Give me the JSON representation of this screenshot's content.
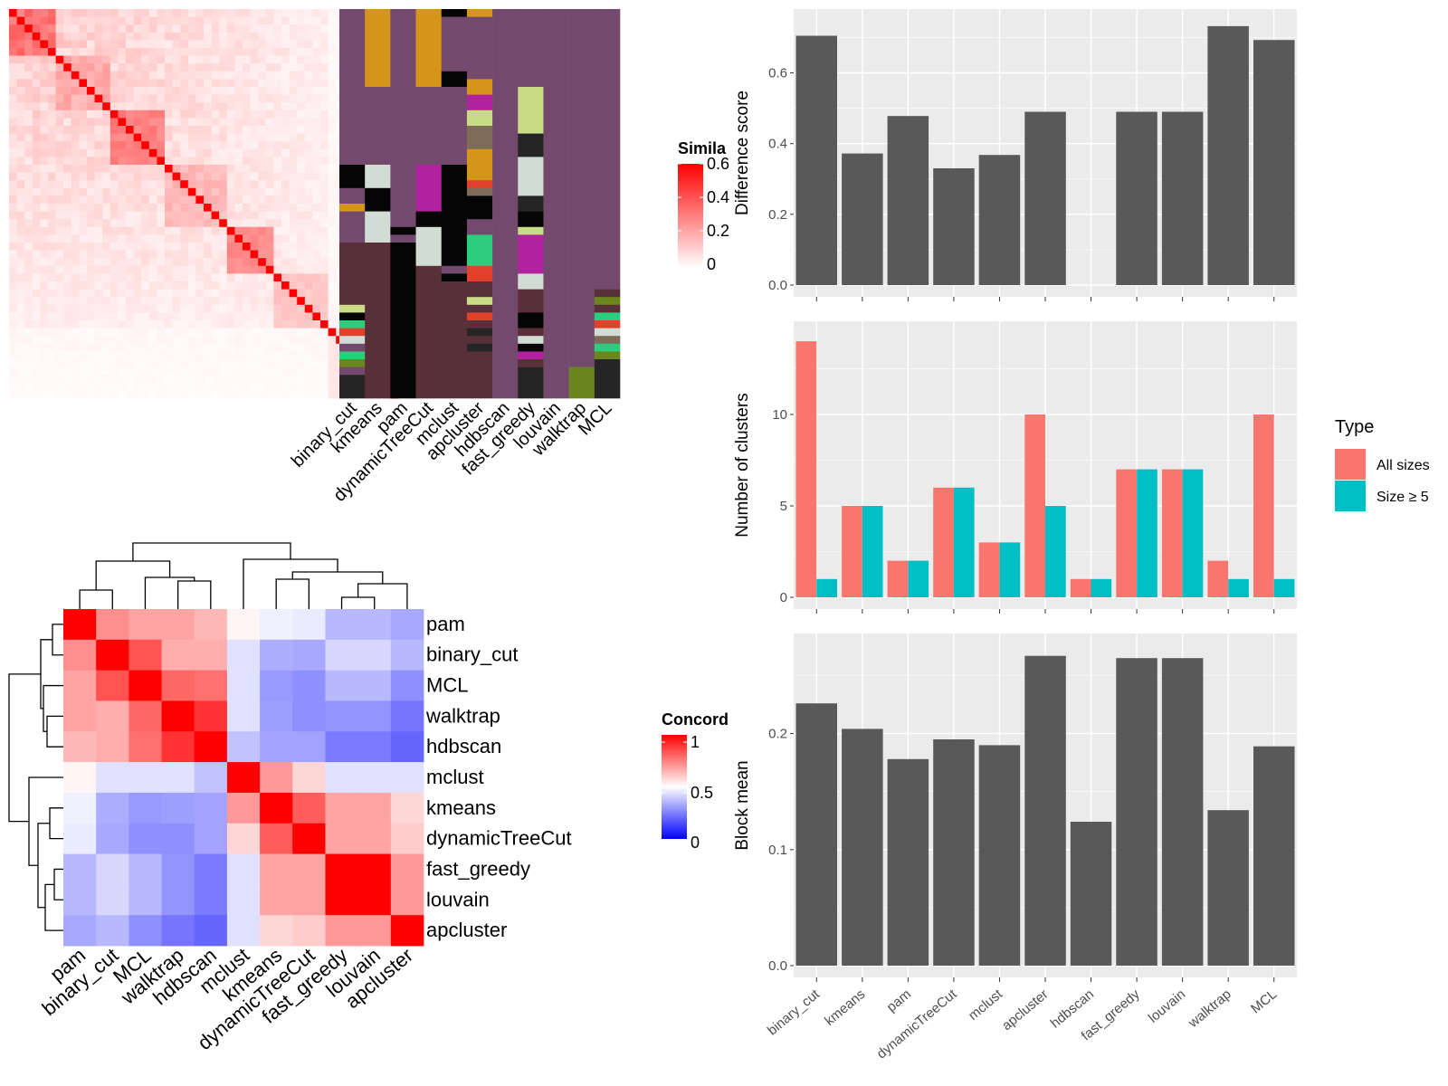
{
  "methods": [
    "binary_cut",
    "kmeans",
    "pam",
    "dynamicTreeCut",
    "mclust",
    "apcluster",
    "hdbscan",
    "fast_greedy",
    "louvain",
    "walktrap",
    "MCL"
  ],
  "similarity_panel": {
    "legend_title": "Simila",
    "legend_ticks": [
      "0.6",
      "0.4",
      "0.2",
      "0"
    ],
    "cluster_colors": [
      "#73496e",
      "#d4951a",
      "#050505",
      "#d1dcd4",
      "#c7dc84",
      "#7c6c58",
      "#b0229e",
      "#252525",
      "#593039",
      "#e1412a",
      "#2ccd7c",
      "#6a861d"
    ]
  },
  "concordance_panel": {
    "legend_title": "Concord",
    "legend_ticks": [
      "1",
      "0.5",
      "0"
    ],
    "order": [
      "pam",
      "binary_cut",
      "MCL",
      "walktrap",
      "hdbscan",
      "mclust",
      "kmeans",
      "dynamicTreeCut",
      "fast_greedy",
      "louvain",
      "apcluster"
    ]
  },
  "chart_data": [
    {
      "type": "bar",
      "categories": [
        "binary_cut",
        "kmeans",
        "pam",
        "dynamicTreeCut",
        "mclust",
        "apcluster",
        "hdbscan",
        "fast_greedy",
        "louvain",
        "walktrap",
        "MCL"
      ],
      "values": [
        0.705,
        0.372,
        0.478,
        0.33,
        0.368,
        0.49,
        0.0,
        0.49,
        0.49,
        0.732,
        0.693
      ],
      "ylabel": "Difference score",
      "yticks": [
        "0.0",
        "0.2",
        "0.4",
        "0.6"
      ],
      "ylim": [
        0,
        0.76
      ],
      "color": "#595959"
    },
    {
      "type": "bar",
      "categories": [
        "binary_cut",
        "kmeans",
        "pam",
        "dynamicTreeCut",
        "mclust",
        "apcluster",
        "hdbscan",
        "fast_greedy",
        "louvain",
        "walktrap",
        "MCL"
      ],
      "series": [
        {
          "name": "All sizes",
          "values": [
            14,
            5,
            2,
            6,
            3,
            10,
            1,
            7,
            7,
            2,
            10
          ],
          "color": "#f8766d"
        },
        {
          "name": "Size ≥ 5",
          "values": [
            1,
            5,
            2,
            6,
            3,
            5,
            1,
            7,
            7,
            1,
            1
          ],
          "color": "#00bfc4"
        }
      ],
      "ylabel": "Number of clusters",
      "yticks": [
        "0",
        "5",
        "10"
      ],
      "ylim": [
        0,
        14.7
      ],
      "legend_title": "Type"
    },
    {
      "type": "bar",
      "categories": [
        "binary_cut",
        "kmeans",
        "pam",
        "dynamicTreeCut",
        "mclust",
        "apcluster",
        "hdbscan",
        "fast_greedy",
        "louvain",
        "walktrap",
        "MCL"
      ],
      "values": [
        0.226,
        0.204,
        0.178,
        0.195,
        0.19,
        0.267,
        0.124,
        0.265,
        0.265,
        0.134,
        0.189
      ],
      "ylabel": "Block mean",
      "yticks": [
        "0.0",
        "0.1",
        "0.2"
      ],
      "ylim": [
        0,
        0.28
      ],
      "color": "#595959"
    }
  ]
}
